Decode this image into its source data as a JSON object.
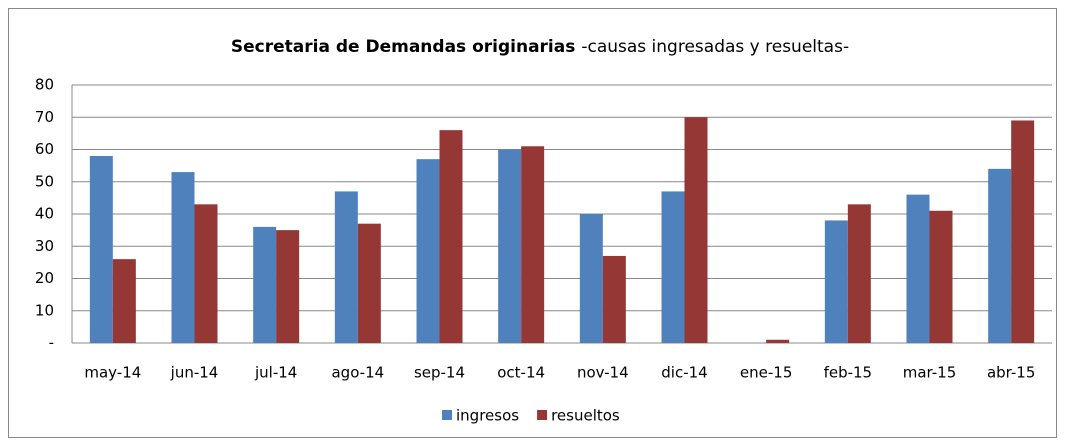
{
  "chart_data": {
    "type": "bar",
    "title": "Secretaria de Demandas originarias",
    "subtitle": "-causas ingresadas y resueltas-",
    "categories": [
      "may-14",
      "jun-14",
      "jul-14",
      "ago-14",
      "sep-14",
      "oct-14",
      "nov-14",
      "dic-14",
      "ene-15",
      "feb-15",
      "mar-15",
      "abr-15"
    ],
    "series": [
      {
        "name": "ingresos",
        "color": "#4f81bd",
        "values": [
          58,
          53,
          36,
          47,
          57,
          60,
          40,
          47,
          0,
          38,
          46,
          54
        ]
      },
      {
        "name": "resueltos",
        "color": "#953735",
        "values": [
          26,
          43,
          35,
          37,
          66,
          61,
          27,
          70,
          1,
          43,
          41,
          69
        ]
      }
    ],
    "ylim": [
      0,
      80
    ],
    "yticks": [
      {
        "value": 0,
        "label": "-"
      },
      10,
      20,
      30,
      40,
      50,
      60,
      70,
      80
    ],
    "grid": true,
    "legend": "bottom"
  }
}
